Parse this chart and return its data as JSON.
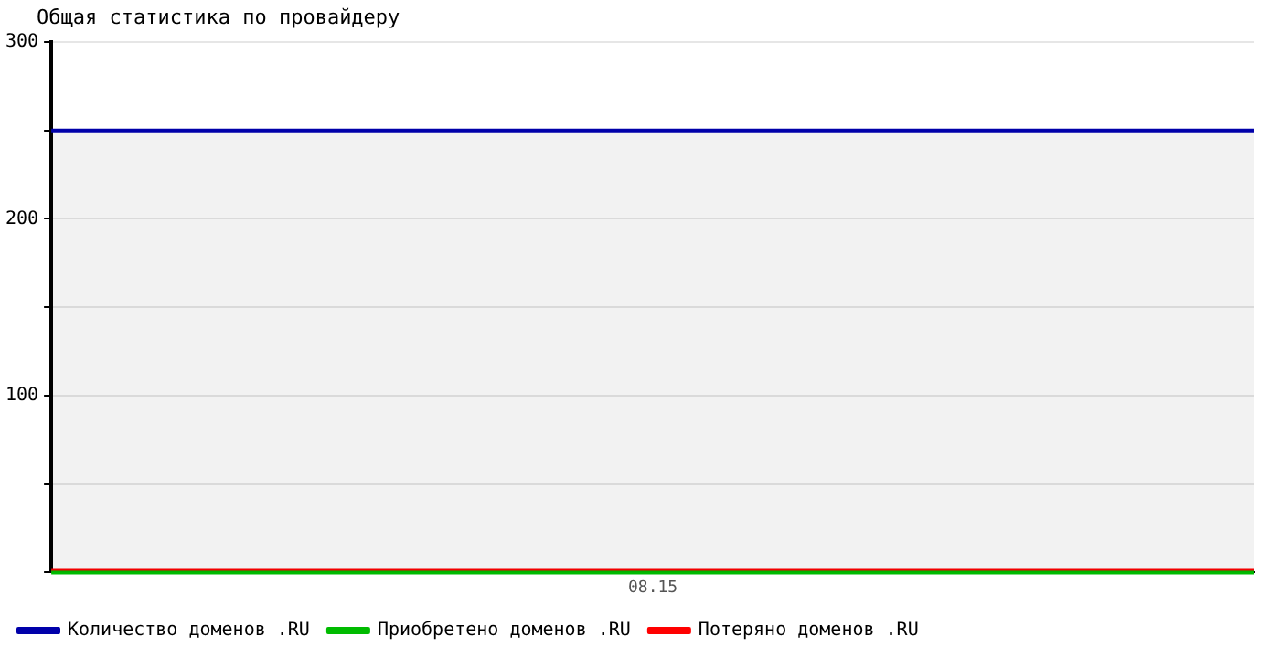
{
  "chart_data": {
    "type": "line",
    "title": "Общая статистика по провайдеру",
    "categories": [
      null,
      "08.15",
      null
    ],
    "series": [
      {
        "name": "Количество доменов .RU",
        "color": "#0000aa",
        "type": "area",
        "values": [
          250,
          250,
          250
        ]
      },
      {
        "name": "Приобретено доменов .RU",
        "color": "#00bb00",
        "values": [
          0,
          0,
          0
        ]
      },
      {
        "name": "Потеряно доменов .RU",
        "color": "#ff0000",
        "values": [
          1,
          1,
          1
        ]
      }
    ],
    "ylim": [
      0,
      300
    ],
    "yticks": [
      {
        "value": 0,
        "label": null
      },
      {
        "value": 50,
        "label": null
      },
      100,
      {
        "value": 150,
        "label": null
      },
      200,
      {
        "value": 250,
        "label": null
      },
      300
    ],
    "grid": "y",
    "legend": "bottom",
    "marker": "none",
    "line_style": "solid"
  }
}
